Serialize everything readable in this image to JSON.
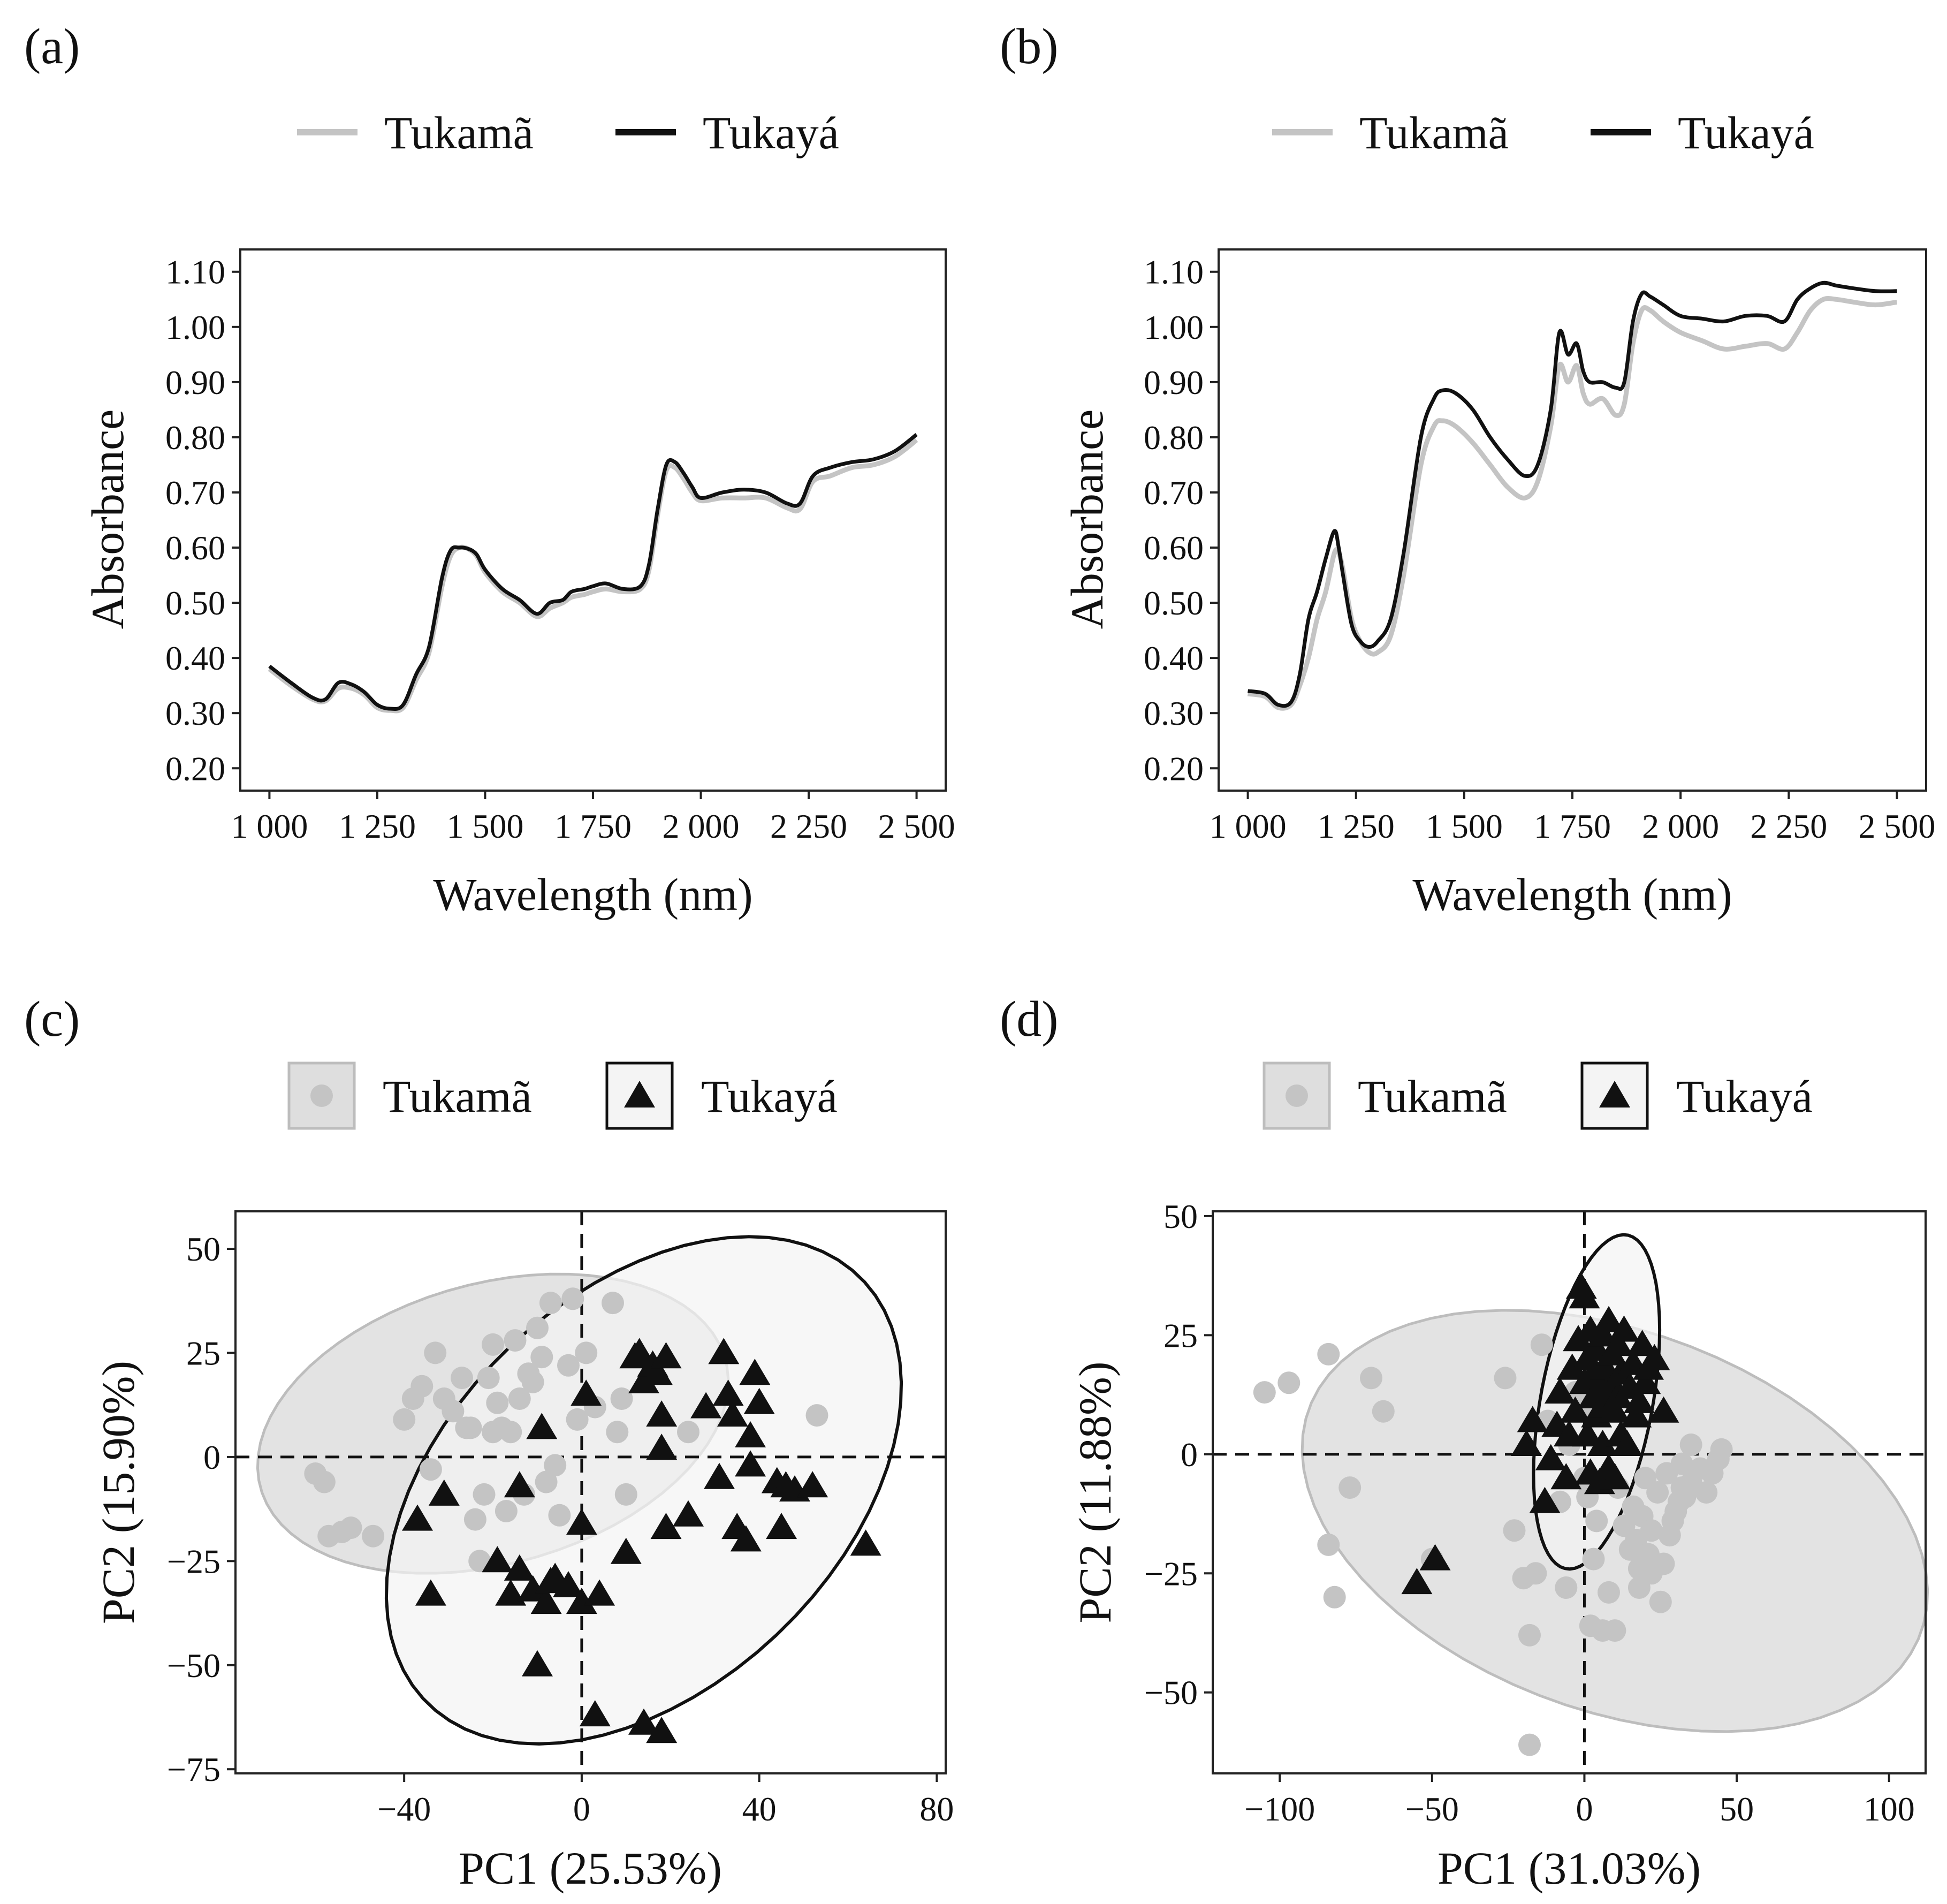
{
  "figure": {
    "colors": {
      "tukama": "#c4c4c4",
      "tukaya": "#111111",
      "ellipse_fill_tukama": "#dedede",
      "ellipse_fill_tukaya": "#f4f4f4"
    }
  },
  "chart_data": [
    {
      "panel": "(a)",
      "type": "line",
      "xlabel": "Wavelength (nm)",
      "ylabel": "Absorbance",
      "xlim": [
        1000,
        2500
      ],
      "ylim": [
        0.2,
        1.1
      ],
      "xticks": [
        1000,
        1250,
        1500,
        1750,
        2000,
        2250,
        2500
      ],
      "xtick_labels": [
        "1 000",
        "1 250",
        "1 500",
        "1 750",
        "2 000",
        "2 250",
        "2 500"
      ],
      "yticks": [
        0.2,
        0.3,
        0.4,
        0.5,
        0.6,
        0.7,
        0.8,
        0.9,
        1.0,
        1.1
      ],
      "ytick_labels": [
        "0.20",
        "0.30",
        "0.40",
        "0.50",
        "0.60",
        "0.70",
        "0.80",
        "0.90",
        "1.00",
        "1.10"
      ],
      "legend": [
        "Tukamã",
        "Tukayá"
      ],
      "x": [
        1000,
        1050,
        1100,
        1130,
        1160,
        1190,
        1220,
        1250,
        1280,
        1310,
        1340,
        1370,
        1400,
        1420,
        1440,
        1460,
        1480,
        1500,
        1540,
        1580,
        1620,
        1650,
        1680,
        1700,
        1730,
        1750,
        1780,
        1820,
        1860,
        1880,
        1900,
        1920,
        1940,
        1960,
        1980,
        2000,
        2050,
        2100,
        2150,
        2200,
        2230,
        2260,
        2300,
        2350,
        2400,
        2450,
        2500
      ],
      "series": [
        {
          "name": "Tukamã",
          "values": [
            0.38,
            0.35,
            0.325,
            0.322,
            0.345,
            0.345,
            0.333,
            0.31,
            0.305,
            0.31,
            0.36,
            0.41,
            0.53,
            0.585,
            0.6,
            0.598,
            0.585,
            0.555,
            0.52,
            0.5,
            0.475,
            0.49,
            0.5,
            0.51,
            0.515,
            0.52,
            0.525,
            0.52,
            0.525,
            0.56,
            0.66,
            0.74,
            0.745,
            0.725,
            0.7,
            0.685,
            0.69,
            0.69,
            0.69,
            0.672,
            0.67,
            0.72,
            0.73,
            0.745,
            0.75,
            0.765,
            0.795
          ]
        },
        {
          "name": "Tukayá",
          "values": [
            0.385,
            0.355,
            0.328,
            0.325,
            0.355,
            0.352,
            0.338,
            0.315,
            0.308,
            0.315,
            0.37,
            0.42,
            0.545,
            0.595,
            0.6,
            0.598,
            0.588,
            0.56,
            0.525,
            0.505,
            0.48,
            0.5,
            0.505,
            0.52,
            0.525,
            0.53,
            0.535,
            0.525,
            0.53,
            0.57,
            0.67,
            0.75,
            0.755,
            0.735,
            0.71,
            0.69,
            0.7,
            0.705,
            0.7,
            0.68,
            0.68,
            0.73,
            0.745,
            0.755,
            0.76,
            0.775,
            0.805
          ]
        }
      ]
    },
    {
      "panel": "(b)",
      "type": "line",
      "xlabel": "Wavelength (nm)",
      "ylabel": "Absorbance",
      "xlim": [
        1000,
        2500
      ],
      "ylim": [
        0.2,
        1.1
      ],
      "xticks": [
        1000,
        1250,
        1500,
        1750,
        2000,
        2250,
        2500
      ],
      "xtick_labels": [
        "1 000",
        "1 250",
        "1 500",
        "1 750",
        "2 000",
        "2 250",
        "2 500"
      ],
      "yticks": [
        0.2,
        0.3,
        0.4,
        0.5,
        0.6,
        0.7,
        0.8,
        0.9,
        1.0,
        1.1
      ],
      "ytick_labels": [
        "0.20",
        "0.30",
        "0.40",
        "0.50",
        "0.60",
        "0.70",
        "0.80",
        "0.90",
        "1.00",
        "1.10"
      ],
      "legend": [
        "Tukamã",
        "Tukayá"
      ],
      "x": [
        1000,
        1040,
        1070,
        1100,
        1120,
        1140,
        1160,
        1180,
        1200,
        1210,
        1220,
        1240,
        1260,
        1280,
        1300,
        1330,
        1360,
        1400,
        1430,
        1450,
        1480,
        1520,
        1560,
        1600,
        1640,
        1670,
        1700,
        1720,
        1740,
        1760,
        1775,
        1790,
        1820,
        1850,
        1870,
        1890,
        1910,
        1930,
        1960,
        2000,
        2050,
        2100,
        2150,
        2200,
        2240,
        2270,
        2300,
        2330,
        2360,
        2400,
        2450,
        2500
      ],
      "series": [
        {
          "name": "Tukamã",
          "values": [
            0.335,
            0.33,
            0.31,
            0.315,
            0.35,
            0.4,
            0.47,
            0.52,
            0.59,
            0.59,
            0.56,
            0.47,
            0.43,
            0.41,
            0.41,
            0.44,
            0.55,
            0.75,
            0.82,
            0.83,
            0.82,
            0.79,
            0.75,
            0.71,
            0.69,
            0.72,
            0.82,
            0.93,
            0.9,
            0.93,
            0.88,
            0.86,
            0.87,
            0.84,
            0.86,
            0.97,
            1.03,
            1.03,
            1.01,
            0.99,
            0.975,
            0.96,
            0.965,
            0.97,
            0.96,
            0.99,
            1.03,
            1.05,
            1.05,
            1.045,
            1.04,
            1.045
          ]
        },
        {
          "name": "Tukayá",
          "values": [
            0.34,
            0.335,
            0.315,
            0.32,
            0.37,
            0.47,
            0.52,
            0.58,
            0.63,
            0.6,
            0.55,
            0.46,
            0.43,
            0.42,
            0.43,
            0.47,
            0.59,
            0.8,
            0.87,
            0.885,
            0.88,
            0.85,
            0.8,
            0.76,
            0.73,
            0.75,
            0.85,
            0.99,
            0.95,
            0.97,
            0.92,
            0.9,
            0.9,
            0.89,
            0.9,
            1.01,
            1.06,
            1.055,
            1.04,
            1.02,
            1.015,
            1.01,
            1.02,
            1.02,
            1.01,
            1.05,
            1.07,
            1.08,
            1.075,
            1.07,
            1.065,
            1.065
          ]
        }
      ]
    },
    {
      "panel": "(c)",
      "type": "scatter",
      "xlabel": "PC1 (25.53%)",
      "ylabel": "PC2 (15.90%)",
      "xlim": [
        -78,
        82
      ],
      "ylim": [
        -76,
        59
      ],
      "xticks": [
        -40,
        0,
        40,
        80
      ],
      "xtick_labels": [
        "−40",
        "0",
        "40",
        "80"
      ],
      "yticks": [
        -75,
        -50,
        -25,
        0,
        25,
        50
      ],
      "ytick_labels": [
        "−75",
        "−50",
        "−25",
        "0",
        "25",
        "50"
      ],
      "reference_lines": {
        "x": 0,
        "y": 0,
        "style": "dashed"
      },
      "legend": [
        "Tukamã",
        "Tukayá"
      ],
      "series": [
        {
          "name": "Tukamã",
          "marker": "circle",
          "x": [
            -60,
            -58,
            -57,
            -54,
            -52,
            -47,
            -40,
            -38,
            -36,
            -34,
            -33,
            -31,
            -29,
            -27,
            -26,
            -25,
            -24,
            -23,
            -22,
            -21,
            -20,
            -20,
            -19,
            -18,
            -17,
            -16,
            -15,
            -14,
            -13,
            -12,
            -11,
            -10,
            -9,
            -8,
            -7,
            -6,
            -5,
            -3,
            -2,
            -1,
            1,
            3,
            7,
            8,
            9,
            10,
            24,
            53
          ],
          "y": [
            -4,
            -6,
            -19,
            -18,
            -17,
            -19,
            9,
            14,
            17,
            -3,
            25,
            14,
            11,
            19,
            7,
            7,
            -15,
            -25,
            -9,
            19,
            6,
            27,
            13,
            7,
            -13,
            6,
            28,
            14,
            -9,
            20,
            18,
            31,
            24,
            -6,
            37,
            -2,
            -14,
            22,
            38,
            9,
            25,
            12,
            37,
            6,
            14,
            -9,
            6,
            10
          ],
          "ellipse": {
            "center": [
              -20,
              8
            ],
            "semi_axes": [
              54.6,
              33.5
            ],
            "angle_deg": 17.6
          }
        },
        {
          "name": "Tukayá",
          "marker": "triangle",
          "x": [
            -37,
            -34,
            -31,
            -19,
            -16,
            -14,
            -14,
            -11,
            -10,
            -9,
            -8,
            -7,
            -6,
            -3,
            0,
            0,
            1,
            3,
            4,
            10,
            12,
            13,
            14,
            16,
            17,
            18,
            18,
            19,
            19,
            24,
            28,
            31,
            32,
            33,
            34,
            35,
            37,
            38,
            38,
            39,
            40,
            44,
            45,
            46,
            48,
            52,
            64,
            14,
            18
          ],
          "y": [
            -15,
            -33,
            -9,
            -25,
            -33,
            -27,
            -7,
            -32,
            -50,
            7,
            -35,
            -30,
            -29,
            -31,
            -35,
            -16,
            15,
            -62,
            -33,
            -23,
            24,
            25,
            18,
            22,
            20,
            2,
            10,
            -17,
            24,
            -14,
            12,
            -5,
            25,
            15,
            10,
            -17,
            -20,
            -2,
            5,
            20,
            13,
            -6,
            -17,
            -7,
            -8,
            -7,
            -21,
            -64,
            -66
          ],
          "ellipse": {
            "center": [
              14,
              -8
            ],
            "semi_axes": [
              70.7,
              45.6
            ],
            "angle_deg": 48.4
          }
        }
      ]
    },
    {
      "panel": "(d)",
      "type": "scatter",
      "xlabel": "PC1 (31.03%)",
      "ylabel": "PC2 (11.88%)",
      "xlim": [
        -122,
        112
      ],
      "ylim": [
        -67,
        51
      ],
      "xticks": [
        -100,
        -50,
        0,
        50,
        100
      ],
      "xtick_labels": [
        "−100",
        "−50",
        "0",
        "50",
        "100"
      ],
      "yticks": [
        -50,
        -25,
        0,
        25,
        50
      ],
      "ytick_labels": [
        "−50",
        "−25",
        "0",
        "25",
        "50"
      ],
      "reference_lines": {
        "x": 0,
        "y": 0,
        "style": "dashed"
      },
      "legend": [
        "Tukamã",
        "Tukayá"
      ],
      "series": [
        {
          "name": "Tukamã",
          "marker": "circle",
          "x": [
            -105,
            -97,
            -84,
            -84,
            -82,
            -77,
            -70,
            -66,
            -50,
            -26,
            -23,
            -20,
            -18,
            -18,
            -16,
            -14,
            -12,
            -8,
            -6,
            -5,
            -3,
            -1,
            0,
            1,
            2,
            3,
            4,
            6,
            8,
            10,
            11,
            13,
            15,
            16,
            17,
            18,
            18,
            19,
            20,
            21,
            22,
            22,
            24,
            25,
            26,
            27,
            28,
            29,
            30,
            31,
            32,
            32,
            33,
            35,
            35,
            38,
            40,
            42,
            44,
            45
          ],
          "y": [
            13,
            15,
            21,
            -19,
            -30,
            -7,
            16,
            9,
            -22,
            16,
            -16,
            -26,
            -38,
            -61,
            -25,
            23,
            7,
            -10,
            -28,
            2,
            13,
            9,
            -5,
            -9,
            -36,
            -22,
            -14,
            -37,
            -29,
            -37,
            -7,
            -15,
            -20,
            -11,
            -18,
            -24,
            -28,
            -13,
            -5,
            -21,
            -16,
            -25,
            -8,
            -31,
            -23,
            -4,
            -17,
            -14,
            -12,
            -10,
            -7,
            -2,
            -9,
            -6,
            2,
            -3,
            -8,
            -4,
            -1,
            1
          ],
          "ellipse": {
            "center": [
              10,
              -14
            ],
            "semi_axes": [
              104,
              41
            ],
            "angle_deg": -10
          }
        },
        {
          "name": "Tukayá",
          "marker": "triangle",
          "x": [
            -55,
            -49,
            -19,
            -17,
            -13,
            -11,
            -9,
            -8,
            -6,
            -5,
            -4,
            -3,
            -2,
            -1,
            0,
            0,
            1,
            1,
            2,
            2,
            3,
            3,
            4,
            4,
            5,
            5,
            6,
            6,
            7,
            7,
            8,
            8,
            9,
            9,
            10,
            10,
            11,
            11,
            12,
            12,
            13,
            14,
            15,
            16,
            17,
            18,
            19,
            20,
            21,
            23,
            26
          ],
          "y": [
            -27,
            -22,
            2,
            7,
            -10,
            -1,
            6,
            13,
            -5,
            4,
            18,
            9,
            24,
            35,
            33,
            15,
            20,
            4,
            26,
            -4,
            12,
            17,
            8,
            22,
            -6,
            14,
            2,
            25,
            10,
            18,
            -3,
            28,
            15,
            21,
            -5,
            9,
            12,
            23,
            4,
            17,
            26,
            2,
            14,
            19,
            8,
            11,
            23,
            15,
            18,
            20,
            9
          ],
          "ellipse": {
            "center": [
              4,
              11
            ],
            "semi_axes": [
              36.6,
              17.9
            ],
            "angle_deg": 71
          }
        }
      ]
    }
  ]
}
